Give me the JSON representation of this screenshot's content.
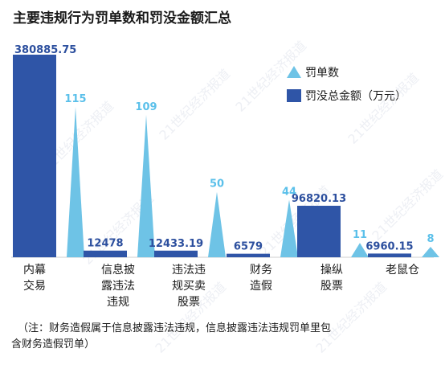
{
  "colors": {
    "bar": "#2f55a7",
    "triangle": "#6ec3e6",
    "value_text_bar": "#2c4f9e",
    "value_text_tri": "#5bc0ea",
    "title": "#1a1a1a",
    "label": "#1a1a1a",
    "baseline": "#cfcfcf"
  },
  "chart_data": {
    "type": "bar",
    "title": "主要违规行为罚单数和罚没金额汇总",
    "categories": [
      "内幕\n交易",
      "信息披\n露违法\n违规",
      "违法违\n规买卖\n股票",
      "财务\n造假",
      "操纵\n股票",
      "老鼠仓"
    ],
    "series": [
      {
        "name": "罚没总金额（万元）",
        "type": "bar",
        "values": [
          380885.75,
          12478,
          12433.19,
          6579,
          96820.13,
          6960.15
        ],
        "value_labels": [
          "380885.75",
          "12478",
          "12433.19",
          "6579",
          "96820.13",
          "6960.15"
        ]
      },
      {
        "name": "罚单数",
        "type": "triangle",
        "values": [
          115,
          109,
          50,
          44,
          11,
          8
        ],
        "value_labels": [
          "115",
          "109",
          "50",
          "44",
          "11",
          "8"
        ]
      }
    ],
    "ylim_bar": [
      0,
      380885.75
    ],
    "ylim_triangle": [
      0,
      115
    ],
    "grid": false,
    "legend": "top-right",
    "note": "（注：财务造假属于信息披露违法违规，信息披露违法违规罚单里包含财务造假罚单）",
    "watermark": "21世纪经济报道"
  }
}
